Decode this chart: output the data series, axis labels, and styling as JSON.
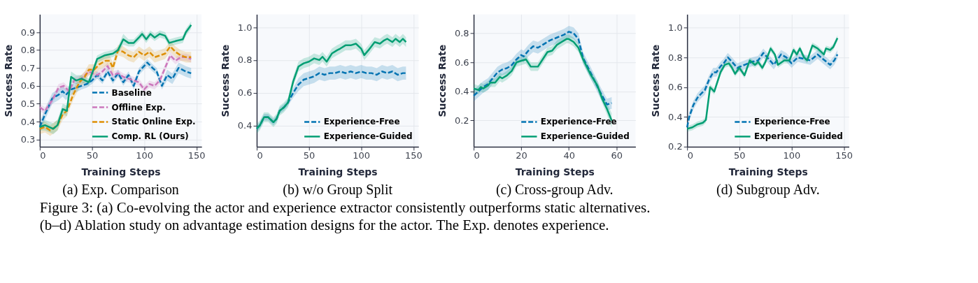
{
  "chart_data": [
    {
      "type": "line",
      "title": "(a) Exp. Comparison",
      "xlabel": "Training Steps",
      "ylabel": "Success Rate",
      "xlim": [
        0,
        155
      ],
      "xticks": [
        0,
        50,
        100,
        150
      ],
      "ylim": [
        0.26,
        1.0
      ],
      "yticks": [
        0.3,
        0.4,
        0.5,
        0.6,
        0.7,
        0.8,
        0.9
      ],
      "grid": true,
      "legend": "bottom right",
      "annotations": [
        "Figure 3: (a) Co-evolving the actor and experience extractor consistently outperforms static alternatives.",
        "(b–d) Ablation study on advantage estimation designs for the actor. The Exp. denotes experience."
      ],
      "series": [
        {
          "name": "Baseline",
          "color": "#0173b2",
          "line_style": "dashed",
          "x": [
            0,
            5,
            12,
            18,
            22,
            25,
            30,
            40,
            45,
            50,
            55,
            60,
            65,
            70,
            75,
            80,
            85,
            90,
            95,
            103,
            108,
            112,
            117,
            122,
            127,
            133,
            140,
            145
          ],
          "values": [
            0.37,
            0.44,
            0.53,
            0.55,
            0.57,
            0.55,
            0.58,
            0.6,
            0.61,
            0.63,
            0.66,
            0.63,
            0.68,
            0.63,
            0.67,
            0.62,
            0.66,
            0.6,
            0.68,
            0.73,
            0.7,
            0.68,
            0.6,
            0.66,
            0.64,
            0.7,
            0.68,
            0.67
          ],
          "lower": [
            0.34,
            0.41,
            0.5,
            0.52,
            0.54,
            0.52,
            0.55,
            0.58,
            0.59,
            0.61,
            0.64,
            0.61,
            0.66,
            0.61,
            0.65,
            0.6,
            0.64,
            0.58,
            0.66,
            0.71,
            0.68,
            0.66,
            0.58,
            0.63,
            0.61,
            0.67,
            0.65,
            0.64
          ],
          "upper": [
            0.4,
            0.47,
            0.56,
            0.58,
            0.6,
            0.58,
            0.61,
            0.62,
            0.63,
            0.65,
            0.68,
            0.65,
            0.7,
            0.65,
            0.69,
            0.64,
            0.68,
            0.62,
            0.7,
            0.75,
            0.72,
            0.7,
            0.62,
            0.69,
            0.67,
            0.73,
            0.71,
            0.7
          ]
        },
        {
          "name": "Offline Exp.",
          "color": "#cc78bc",
          "line_style": "dashed",
          "x": [
            0,
            5,
            12,
            18,
            23,
            28,
            33,
            40,
            47,
            55,
            60,
            65,
            70,
            75,
            80,
            85,
            90,
            95,
            100,
            105,
            110,
            115,
            120,
            125,
            130,
            135,
            140,
            145
          ],
          "values": [
            0.48,
            0.46,
            0.52,
            0.59,
            0.6,
            0.57,
            0.63,
            0.64,
            0.68,
            0.66,
            0.68,
            0.71,
            0.66,
            0.67,
            0.65,
            0.64,
            0.63,
            0.62,
            0.58,
            0.61,
            0.6,
            0.63,
            0.7,
            0.77,
            0.74,
            0.76,
            0.76,
            0.75
          ],
          "lower": [
            0.46,
            0.44,
            0.5,
            0.57,
            0.58,
            0.55,
            0.61,
            0.62,
            0.66,
            0.64,
            0.66,
            0.69,
            0.64,
            0.65,
            0.63,
            0.62,
            0.61,
            0.6,
            0.56,
            0.59,
            0.58,
            0.61,
            0.68,
            0.75,
            0.72,
            0.74,
            0.74,
            0.73
          ],
          "upper": [
            0.5,
            0.48,
            0.54,
            0.61,
            0.62,
            0.59,
            0.65,
            0.66,
            0.7,
            0.68,
            0.7,
            0.73,
            0.68,
            0.69,
            0.67,
            0.66,
            0.65,
            0.64,
            0.6,
            0.63,
            0.62,
            0.65,
            0.72,
            0.79,
            0.76,
            0.78,
            0.78,
            0.77
          ]
        },
        {
          "name": "Static Online Exp.",
          "color": "#de8f05",
          "line_style": "dashed",
          "x": [
            0,
            5,
            10,
            17,
            22,
            26,
            32,
            38,
            43,
            47,
            52,
            57,
            63,
            67,
            70,
            75,
            80,
            85,
            90,
            95,
            100,
            105,
            110,
            115,
            120,
            125,
            130,
            135,
            140,
            145
          ],
          "values": [
            0.36,
            0.37,
            0.35,
            0.38,
            0.44,
            0.46,
            0.55,
            0.62,
            0.65,
            0.69,
            0.69,
            0.72,
            0.74,
            0.74,
            0.7,
            0.8,
            0.79,
            0.77,
            0.76,
            0.79,
            0.77,
            0.79,
            0.76,
            0.77,
            0.78,
            0.82,
            0.79,
            0.77,
            0.76,
            0.76
          ],
          "lower": [
            0.33,
            0.34,
            0.32,
            0.35,
            0.41,
            0.43,
            0.52,
            0.59,
            0.62,
            0.66,
            0.66,
            0.69,
            0.71,
            0.71,
            0.67,
            0.77,
            0.76,
            0.74,
            0.73,
            0.76,
            0.74,
            0.76,
            0.73,
            0.74,
            0.75,
            0.79,
            0.76,
            0.74,
            0.73,
            0.73
          ],
          "upper": [
            0.39,
            0.4,
            0.38,
            0.41,
            0.47,
            0.49,
            0.58,
            0.65,
            0.68,
            0.72,
            0.72,
            0.75,
            0.77,
            0.77,
            0.73,
            0.83,
            0.82,
            0.8,
            0.79,
            0.82,
            0.8,
            0.82,
            0.79,
            0.8,
            0.81,
            0.85,
            0.82,
            0.8,
            0.79,
            0.79
          ]
        },
        {
          "name": "Comp. RL (Ours)",
          "color": "#029e73",
          "line_style": "solid",
          "x": [
            0,
            5,
            13,
            17,
            22,
            26,
            30,
            35,
            40,
            47,
            52,
            55,
            62,
            70,
            75,
            80,
            85,
            90,
            95,
            98,
            102,
            106,
            110,
            115,
            120,
            124,
            130,
            137,
            140,
            145
          ],
          "values": [
            0.37,
            0.38,
            0.36,
            0.38,
            0.47,
            0.46,
            0.65,
            0.63,
            0.64,
            0.62,
            0.7,
            0.75,
            0.77,
            0.78,
            0.8,
            0.86,
            0.84,
            0.84,
            0.87,
            0.89,
            0.86,
            0.89,
            0.87,
            0.89,
            0.88,
            0.84,
            0.85,
            0.86,
            0.9,
            0.94
          ],
          "lower": [
            0.35,
            0.35,
            0.33,
            0.35,
            0.44,
            0.43,
            0.62,
            0.61,
            0.62,
            0.6,
            0.68,
            0.73,
            0.75,
            0.76,
            0.78,
            0.83,
            0.82,
            0.82,
            0.85,
            0.87,
            0.84,
            0.87,
            0.85,
            0.87,
            0.86,
            0.82,
            0.83,
            0.84,
            0.88,
            0.92
          ],
          "upper": [
            0.39,
            0.41,
            0.39,
            0.41,
            0.5,
            0.49,
            0.68,
            0.66,
            0.66,
            0.64,
            0.72,
            0.77,
            0.79,
            0.8,
            0.82,
            0.89,
            0.86,
            0.86,
            0.89,
            0.91,
            0.88,
            0.91,
            0.89,
            0.91,
            0.9,
            0.86,
            0.87,
            0.88,
            0.92,
            0.96
          ]
        }
      ]
    },
    {
      "type": "line",
      "title": "(b) w/o Group Split",
      "xlabel": "Training Steps",
      "ylabel": "Success Rate",
      "xlim": [
        0,
        155
      ],
      "xticks": [
        0,
        50,
        100,
        150
      ],
      "ylim": [
        0.27,
        1.08
      ],
      "yticks": [
        0.4,
        0.6,
        0.8,
        {
          "value": 1,
          "label": "1.0"
        }
      ],
      "grid": true,
      "legend": "bottom right",
      "series": [
        {
          "name": "Experience-Free",
          "color": "#0173b2",
          "line_style": "dashed",
          "x": [
            0,
            3,
            7,
            11,
            16,
            19,
            22,
            26,
            30,
            35,
            40,
            45,
            50,
            55,
            60,
            65,
            70,
            75,
            80,
            85,
            90,
            95,
            100,
            105,
            110,
            115,
            120,
            125,
            130,
            135,
            140,
            143
          ],
          "values": [
            0.38,
            0.4,
            0.45,
            0.45,
            0.42,
            0.44,
            0.49,
            0.51,
            0.54,
            0.6,
            0.65,
            0.68,
            0.69,
            0.7,
            0.72,
            0.71,
            0.72,
            0.72,
            0.73,
            0.72,
            0.73,
            0.72,
            0.73,
            0.72,
            0.72,
            0.71,
            0.73,
            0.72,
            0.73,
            0.71,
            0.72,
            0.72
          ],
          "lower": [
            0.36,
            0.38,
            0.43,
            0.43,
            0.4,
            0.42,
            0.47,
            0.49,
            0.52,
            0.57,
            0.61,
            0.64,
            0.65,
            0.66,
            0.68,
            0.67,
            0.68,
            0.68,
            0.69,
            0.68,
            0.69,
            0.68,
            0.69,
            0.68,
            0.68,
            0.67,
            0.69,
            0.68,
            0.69,
            0.67,
            0.68,
            0.68
          ],
          "upper": [
            0.4,
            0.42,
            0.47,
            0.47,
            0.44,
            0.46,
            0.51,
            0.53,
            0.56,
            0.63,
            0.69,
            0.72,
            0.73,
            0.74,
            0.76,
            0.75,
            0.76,
            0.76,
            0.77,
            0.76,
            0.77,
            0.76,
            0.77,
            0.76,
            0.76,
            0.75,
            0.77,
            0.76,
            0.77,
            0.75,
            0.76,
            0.76
          ]
        },
        {
          "name": "Experience-Guided",
          "color": "#029e73",
          "line_style": "solid",
          "x": [
            0,
            3,
            7,
            11,
            16,
            19,
            22,
            26,
            30,
            35,
            40,
            45,
            50,
            55,
            60,
            63,
            67,
            72,
            77,
            80,
            85,
            90,
            95,
            100,
            103,
            107,
            113,
            118,
            122,
            125,
            130,
            133,
            137,
            140,
            143
          ],
          "values": [
            0.38,
            0.4,
            0.45,
            0.45,
            0.42,
            0.44,
            0.49,
            0.51,
            0.54,
            0.67,
            0.76,
            0.78,
            0.79,
            0.81,
            0.8,
            0.82,
            0.79,
            0.84,
            0.86,
            0.87,
            0.89,
            0.89,
            0.9,
            0.87,
            0.83,
            0.86,
            0.91,
            0.9,
            0.92,
            0.93,
            0.91,
            0.93,
            0.91,
            0.93,
            0.91
          ],
          "lower": [
            0.35,
            0.37,
            0.42,
            0.42,
            0.39,
            0.41,
            0.46,
            0.48,
            0.51,
            0.64,
            0.73,
            0.75,
            0.76,
            0.78,
            0.77,
            0.79,
            0.76,
            0.81,
            0.83,
            0.84,
            0.86,
            0.86,
            0.87,
            0.84,
            0.8,
            0.83,
            0.88,
            0.87,
            0.89,
            0.9,
            0.88,
            0.9,
            0.88,
            0.9,
            0.88
          ],
          "upper": [
            0.41,
            0.43,
            0.48,
            0.48,
            0.45,
            0.47,
            0.52,
            0.54,
            0.57,
            0.7,
            0.79,
            0.81,
            0.82,
            0.84,
            0.83,
            0.85,
            0.82,
            0.87,
            0.89,
            0.9,
            0.92,
            0.92,
            0.93,
            0.9,
            0.86,
            0.89,
            0.94,
            0.93,
            0.95,
            0.96,
            0.94,
            0.96,
            0.94,
            0.96,
            0.94
          ]
        }
      ]
    },
    {
      "type": "line",
      "title": "(c) Cross-group Adv.",
      "xlabel": "Training Steps",
      "ylabel": "Success Rate",
      "xlim": [
        0,
        68
      ],
      "xticks": [
        0,
        20,
        40,
        60
      ],
      "ylim": [
        0.02,
        0.93
      ],
      "yticks": [
        0.2,
        0.4,
        0.6,
        0.8
      ],
      "grid": true,
      "legend": "bottom right",
      "series": [
        {
          "name": "Experience-Free",
          "color": "#0173b2",
          "line_style": "dashed",
          "x": [
            0,
            2,
            4,
            6,
            8,
            10,
            12,
            14,
            16,
            18,
            20,
            21,
            23,
            25,
            27,
            30,
            32,
            35,
            38,
            40,
            42,
            44,
            46,
            50,
            53,
            56,
            58
          ],
          "values": [
            0.37,
            0.4,
            0.43,
            0.45,
            0.49,
            0.53,
            0.55,
            0.56,
            0.58,
            0.62,
            0.65,
            0.64,
            0.68,
            0.71,
            0.7,
            0.73,
            0.75,
            0.77,
            0.79,
            0.81,
            0.8,
            0.76,
            0.63,
            0.5,
            0.4,
            0.31,
            0.32
          ],
          "lower": [
            0.33,
            0.36,
            0.39,
            0.41,
            0.45,
            0.49,
            0.51,
            0.52,
            0.54,
            0.58,
            0.61,
            0.6,
            0.64,
            0.67,
            0.66,
            0.69,
            0.71,
            0.73,
            0.75,
            0.77,
            0.76,
            0.72,
            0.59,
            0.46,
            0.36,
            0.27,
            0.28
          ],
          "upper": [
            0.41,
            0.44,
            0.47,
            0.49,
            0.53,
            0.57,
            0.59,
            0.6,
            0.62,
            0.66,
            0.69,
            0.68,
            0.72,
            0.75,
            0.74,
            0.77,
            0.79,
            0.81,
            0.83,
            0.85,
            0.84,
            0.8,
            0.67,
            0.54,
            0.44,
            0.35,
            0.36
          ]
        },
        {
          "name": "Experience-Guided",
          "color": "#029e73",
          "line_style": "solid",
          "x": [
            0,
            2,
            3,
            4,
            6,
            7,
            9,
            11,
            12,
            14,
            16,
            18,
            20,
            22,
            24,
            27,
            29,
            31,
            33,
            35,
            37,
            39,
            40,
            42,
            44,
            46,
            49,
            52,
            54,
            56,
            58
          ],
          "values": [
            0.42,
            0.41,
            0.43,
            0.42,
            0.44,
            0.46,
            0.46,
            0.5,
            0.49,
            0.51,
            0.54,
            0.6,
            0.61,
            0.62,
            0.57,
            0.57,
            0.62,
            0.67,
            0.68,
            0.72,
            0.74,
            0.76,
            0.76,
            0.74,
            0.7,
            0.62,
            0.52,
            0.44,
            0.35,
            0.28,
            0.2
          ],
          "lower": [
            0.39,
            0.38,
            0.4,
            0.39,
            0.41,
            0.43,
            0.43,
            0.47,
            0.46,
            0.48,
            0.51,
            0.57,
            0.58,
            0.59,
            0.54,
            0.54,
            0.59,
            0.64,
            0.65,
            0.69,
            0.71,
            0.73,
            0.73,
            0.71,
            0.67,
            0.59,
            0.49,
            0.41,
            0.32,
            0.24,
            0.15
          ],
          "upper": [
            0.45,
            0.44,
            0.46,
            0.45,
            0.47,
            0.49,
            0.49,
            0.53,
            0.52,
            0.54,
            0.57,
            0.63,
            0.64,
            0.65,
            0.6,
            0.6,
            0.65,
            0.7,
            0.71,
            0.75,
            0.77,
            0.79,
            0.79,
            0.77,
            0.73,
            0.65,
            0.55,
            0.47,
            0.38,
            0.32,
            0.25
          ]
        }
      ]
    },
    {
      "type": "line",
      "title": "(d) Subgroup Adv.",
      "xlabel": "Training Steps",
      "ylabel": "Success Rate",
      "xlim": [
        0,
        155
      ],
      "xticks": [
        0,
        50,
        100,
        150
      ],
      "ylim": [
        0.2,
        1.09
      ],
      "yticks": [
        0.2,
        0.4,
        0.6,
        0.8,
        {
          "value": 1,
          "label": "1.0"
        }
      ],
      "grid": true,
      "legend": "bottom right",
      "series": [
        {
          "name": "Experience-Free",
          "color": "#0173b2",
          "line_style": "dashed",
          "x": [
            0,
            2,
            6,
            10,
            14,
            17,
            21,
            25,
            28,
            32,
            35,
            39,
            43,
            48,
            55,
            62,
            68,
            73,
            78,
            83,
            90,
            95,
            100,
            106,
            112,
            118,
            125,
            130,
            137,
            141,
            144
          ],
          "values": [
            0.33,
            0.4,
            0.48,
            0.53,
            0.56,
            0.58,
            0.65,
            0.7,
            0.7,
            0.74,
            0.76,
            0.8,
            0.77,
            0.73,
            0.75,
            0.77,
            0.78,
            0.83,
            0.79,
            0.75,
            0.82,
            0.8,
            0.76,
            0.8,
            0.79,
            0.78,
            0.82,
            0.79,
            0.75,
            0.78,
            0.82
          ],
          "lower": [
            0.3,
            0.37,
            0.45,
            0.5,
            0.53,
            0.55,
            0.62,
            0.67,
            0.67,
            0.71,
            0.73,
            0.77,
            0.74,
            0.7,
            0.72,
            0.74,
            0.75,
            0.8,
            0.76,
            0.72,
            0.79,
            0.77,
            0.73,
            0.77,
            0.76,
            0.75,
            0.79,
            0.76,
            0.72,
            0.75,
            0.79
          ],
          "upper": [
            0.36,
            0.43,
            0.51,
            0.56,
            0.59,
            0.61,
            0.68,
            0.73,
            0.73,
            0.77,
            0.79,
            0.83,
            0.8,
            0.76,
            0.78,
            0.8,
            0.81,
            0.86,
            0.82,
            0.78,
            0.85,
            0.83,
            0.79,
            0.83,
            0.82,
            0.81,
            0.85,
            0.82,
            0.78,
            0.81,
            0.85
          ]
        },
        {
          "name": "Experience-Guided",
          "color": "#029e73",
          "line_style": "solid",
          "x": [
            0,
            5,
            10,
            15,
            18,
            22,
            26,
            32,
            36,
            40,
            43,
            46,
            50,
            55,
            60,
            65,
            68,
            72,
            75,
            80,
            84,
            87,
            93,
            98,
            102,
            105,
            108,
            112,
            115,
            120,
            125,
            128,
            131,
            133,
            137,
            140,
            144
          ],
          "values": [
            0.32,
            0.33,
            0.35,
            0.36,
            0.38,
            0.6,
            0.57,
            0.7,
            0.75,
            0.76,
            0.73,
            0.69,
            0.73,
            0.68,
            0.78,
            0.75,
            0.77,
            0.73,
            0.77,
            0.86,
            0.82,
            0.75,
            0.78,
            0.78,
            0.85,
            0.82,
            0.86,
            0.8,
            0.78,
            0.88,
            0.86,
            0.84,
            0.82,
            0.86,
            0.85,
            0.87,
            0.93
          ],
          "lower": [
            0.3,
            0.31,
            0.33,
            0.34,
            0.36,
            0.58,
            0.55,
            0.68,
            0.73,
            0.74,
            0.71,
            0.67,
            0.71,
            0.66,
            0.76,
            0.73,
            0.75,
            0.71,
            0.75,
            0.84,
            0.8,
            0.73,
            0.76,
            0.76,
            0.83,
            0.8,
            0.84,
            0.78,
            0.76,
            0.86,
            0.84,
            0.82,
            0.8,
            0.84,
            0.83,
            0.85,
            0.91
          ],
          "upper": [
            0.34,
            0.35,
            0.37,
            0.38,
            0.4,
            0.62,
            0.59,
            0.72,
            0.77,
            0.78,
            0.75,
            0.71,
            0.75,
            0.7,
            0.8,
            0.77,
            0.79,
            0.75,
            0.79,
            0.88,
            0.84,
            0.77,
            0.8,
            0.8,
            0.87,
            0.84,
            0.88,
            0.82,
            0.8,
            0.9,
            0.88,
            0.86,
            0.84,
            0.88,
            0.87,
            0.89,
            0.95
          ]
        }
      ]
    }
  ]
}
